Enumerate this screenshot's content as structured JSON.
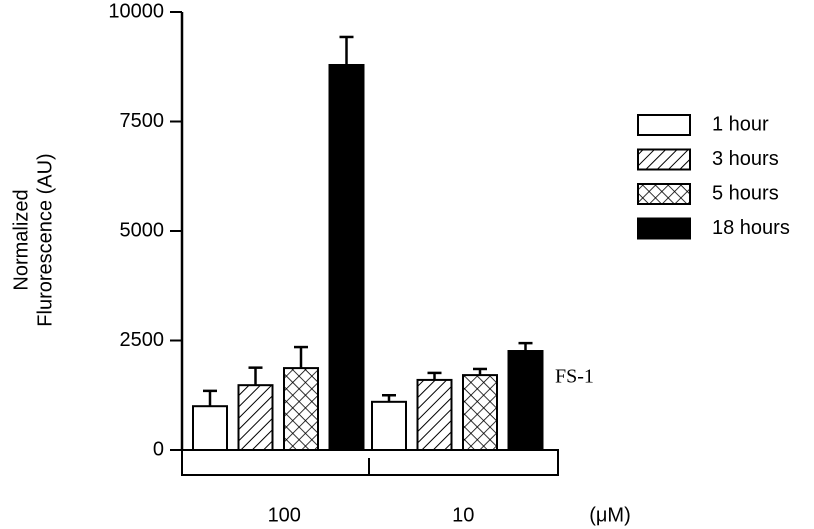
{
  "chart_data": {
    "type": "bar",
    "ylabel": [
      "Normalized",
      "Flurorescence (AU)"
    ],
    "xlabel": "(μM)",
    "categories": [
      "100",
      "10"
    ],
    "annotation": "FS-1",
    "ylim": [
      0,
      10000
    ],
    "yticks": [
      0,
      2500,
      5000,
      7500,
      10000
    ],
    "series": [
      {
        "name": "1 hour",
        "color": "#000000",
        "pattern": "none",
        "values": [
          1000,
          1100
        ],
        "errors": [
          350,
          150
        ]
      },
      {
        "name": "3 hours",
        "color": "#000000",
        "pattern": "hatch",
        "values": [
          1480,
          1600
        ],
        "errors": [
          400,
          160
        ]
      },
      {
        "name": "5 hours",
        "color": "#000000",
        "pattern": "crosshatch",
        "values": [
          1870,
          1710
        ],
        "errors": [
          480,
          140
        ]
      },
      {
        "name": "18 hours",
        "color": "#000000",
        "pattern": "solid",
        "values": [
          8790,
          2260
        ],
        "errors": [
          640,
          180
        ]
      }
    ]
  }
}
